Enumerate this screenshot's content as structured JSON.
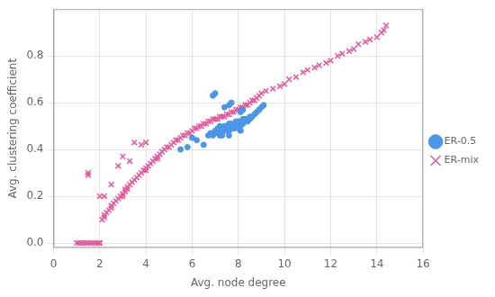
{
  "chart_data": {
    "type": "scatter",
    "xlabel": "Avg. node degree",
    "ylabel": "Avg. clustering coefficient",
    "series": [
      {
        "name": "ER-0.5",
        "color": "#4B96E6",
        "marker": "circle",
        "x": [
          5.5,
          5.8,
          6.0,
          6.2,
          6.5,
          6.7,
          6.8,
          6.9,
          7.0,
          7.0,
          7.1,
          7.1,
          7.2,
          7.2,
          7.2,
          7.3,
          7.3,
          7.4,
          7.4,
          7.4,
          7.5,
          7.5,
          7.5,
          7.6,
          7.6,
          7.6,
          7.6,
          7.7,
          7.7,
          7.7,
          7.8,
          7.8,
          7.8,
          7.9,
          7.9,
          7.9,
          8.0,
          8.0,
          8.0,
          8.0,
          8.1,
          8.1,
          8.1,
          8.1,
          8.2,
          8.2,
          8.2,
          8.3,
          8.3,
          8.4,
          8.4,
          8.5,
          8.5,
          8.6,
          8.7,
          8.8,
          8.9,
          9.0,
          9.1,
          6.9,
          7.0,
          7.4,
          7.6,
          7.7,
          8.1,
          8.2
        ],
        "values": [
          0.4,
          0.41,
          0.45,
          0.44,
          0.42,
          0.46,
          0.47,
          0.46,
          0.48,
          0.47,
          0.49,
          0.47,
          0.48,
          0.5,
          0.46,
          0.48,
          0.46,
          0.5,
          0.49,
          0.48,
          0.5,
          0.49,
          0.48,
          0.51,
          0.5,
          0.48,
          0.46,
          0.51,
          0.5,
          0.49,
          0.51,
          0.5,
          0.49,
          0.52,
          0.51,
          0.5,
          0.52,
          0.51,
          0.5,
          0.49,
          0.52,
          0.51,
          0.5,
          0.48,
          0.53,
          0.52,
          0.51,
          0.53,
          0.52,
          0.53,
          0.52,
          0.54,
          0.53,
          0.54,
          0.55,
          0.56,
          0.57,
          0.58,
          0.59,
          0.63,
          0.64,
          0.58,
          0.59,
          0.6,
          0.56,
          0.57
        ]
      },
      {
        "name": "ER-mix",
        "color": "#E8579A",
        "marker": "x",
        "x": [
          1.0,
          1.1,
          1.2,
          1.3,
          1.4,
          1.5,
          1.6,
          1.7,
          1.8,
          1.9,
          2.0,
          2.0,
          2.0,
          2.1,
          2.2,
          2.2,
          2.3,
          2.4,
          2.5,
          2.5,
          2.6,
          2.7,
          2.8,
          2.9,
          3.0,
          3.0,
          3.1,
          3.1,
          3.2,
          3.2,
          3.3,
          3.4,
          3.5,
          3.6,
          3.7,
          3.8,
          3.9,
          4.0,
          4.0,
          4.1,
          4.2,
          4.3,
          4.4,
          4.5,
          4.5,
          4.6,
          4.7,
          4.8,
          4.9,
          5.0,
          5.1,
          5.2,
          5.3,
          5.4,
          5.5,
          5.6,
          5.7,
          5.8,
          5.9,
          6.0,
          6.1,
          6.2,
          6.3,
          6.4,
          6.5,
          6.6,
          6.7,
          6.8,
          6.9,
          7.0,
          7.1,
          7.2,
          7.3,
          7.4,
          7.5,
          7.6,
          7.7,
          7.8,
          7.9,
          8.0,
          8.1,
          8.2,
          8.3,
          8.4,
          8.5,
          8.6,
          8.7,
          8.8,
          8.9,
          9.0,
          9.2,
          9.5,
          9.8,
          10.0,
          10.2,
          10.5,
          10.8,
          11.0,
          11.3,
          11.5,
          11.8,
          12.0,
          12.3,
          12.5,
          12.8,
          13.0,
          13.2,
          13.5,
          13.7,
          14.0,
          14.2,
          14.3,
          14.4,
          1.5,
          2.0,
          2.5,
          3.0,
          3.5,
          4.0,
          1.5,
          2.2,
          2.8,
          3.3,
          3.8
        ],
        "values": [
          0.0,
          0.0,
          0.0,
          0.0,
          0.0,
          0.0,
          0.0,
          0.0,
          0.0,
          0.0,
          0.0,
          0.0,
          0.0,
          0.1,
          0.11,
          0.12,
          0.13,
          0.14,
          0.15,
          0.16,
          0.17,
          0.18,
          0.19,
          0.2,
          0.2,
          0.21,
          0.22,
          0.23,
          0.23,
          0.24,
          0.25,
          0.26,
          0.27,
          0.28,
          0.29,
          0.3,
          0.31,
          0.31,
          0.32,
          0.33,
          0.34,
          0.35,
          0.36,
          0.36,
          0.37,
          0.38,
          0.39,
          0.4,
          0.41,
          0.41,
          0.42,
          0.43,
          0.44,
          0.44,
          0.45,
          0.46,
          0.46,
          0.47,
          0.47,
          0.48,
          0.49,
          0.49,
          0.5,
          0.5,
          0.51,
          0.51,
          0.52,
          0.52,
          0.53,
          0.53,
          0.53,
          0.54,
          0.54,
          0.54,
          0.55,
          0.55,
          0.56,
          0.56,
          0.57,
          0.57,
          0.58,
          0.58,
          0.59,
          0.59,
          0.6,
          0.61,
          0.61,
          0.62,
          0.63,
          0.64,
          0.65,
          0.66,
          0.67,
          0.68,
          0.7,
          0.71,
          0.73,
          0.74,
          0.75,
          0.76,
          0.77,
          0.78,
          0.8,
          0.81,
          0.82,
          0.83,
          0.85,
          0.86,
          0.87,
          0.88,
          0.9,
          0.91,
          0.93,
          0.3,
          0.2,
          0.25,
          0.37,
          0.43,
          0.43,
          0.29,
          0.2,
          0.33,
          0.35,
          0.42
        ]
      }
    ],
    "xlim": [
      0,
      16
    ],
    "ylim": [
      -0.02,
      1.0
    ],
    "xticks": [
      0,
      2,
      4,
      6,
      8,
      10,
      12,
      14,
      16
    ],
    "yticks": [
      {
        "value": 0.0,
        "label": "0.0"
      },
      0.2,
      0.4,
      0.6,
      0.8
    ],
    "grid": true,
    "legend": "right"
  }
}
